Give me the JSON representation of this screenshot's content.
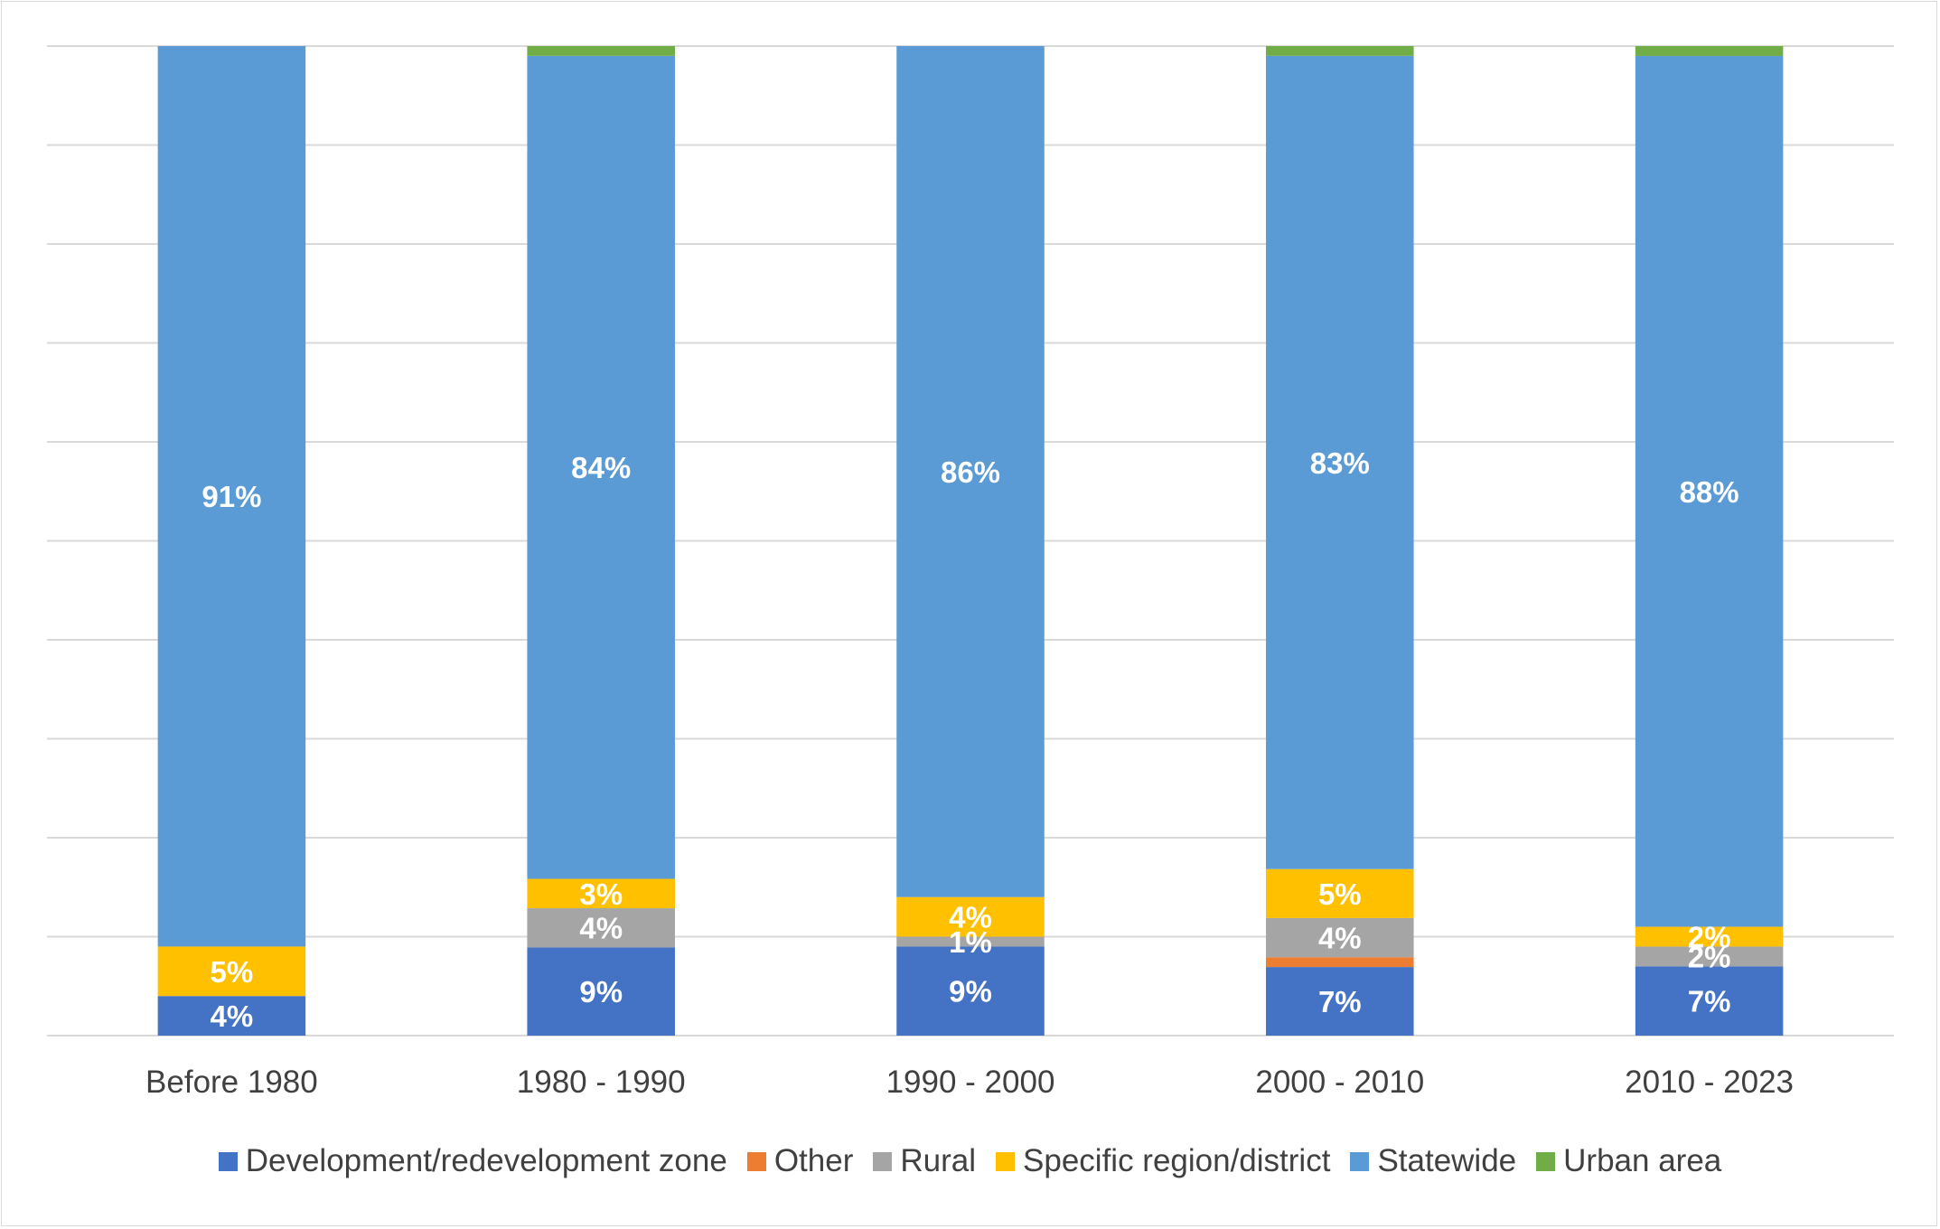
{
  "chart_data": {
    "type": "bar",
    "stacked": true,
    "normalized": true,
    "title": "",
    "xlabel": "",
    "ylabel": "",
    "ylim": [
      0,
      100
    ],
    "grid": true,
    "legend_position": "bottom",
    "categories": [
      "Before 1980",
      "1980 - 1990",
      "1990 - 2000",
      "2000 - 2010",
      "2010 - 2023"
    ],
    "series": [
      {
        "name": "Development/redevelopment zone",
        "color": "#4472C4",
        "values": [
          4,
          9,
          9,
          7,
          7
        ],
        "labels": [
          "4%",
          "9%",
          "9%",
          "7%",
          "7%"
        ]
      },
      {
        "name": "Other",
        "color": "#ED7D31",
        "values": [
          0,
          0,
          0,
          1,
          0
        ],
        "labels": [
          "",
          "",
          "",
          "",
          ""
        ]
      },
      {
        "name": "Rural",
        "color": "#A5A5A5",
        "values": [
          0,
          4,
          1,
          4,
          2
        ],
        "labels": [
          "",
          "4%",
          "1%",
          "4%",
          "2%"
        ]
      },
      {
        "name": "Specific region/district",
        "color": "#FFC000",
        "values": [
          5,
          3,
          4,
          5,
          2
        ],
        "labels": [
          "5%",
          "3%",
          "4%",
          "5%",
          "2%"
        ]
      },
      {
        "name": "Statewide",
        "color": "#5B9BD5",
        "values": [
          91,
          84,
          86,
          83,
          88
        ],
        "labels": [
          "91%",
          "84%",
          "86%",
          "83%",
          "88%"
        ]
      },
      {
        "name": "Urban area",
        "color": "#70AD47",
        "values": [
          0,
          1,
          0,
          1,
          1
        ],
        "labels": [
          "",
          "",
          "",
          "",
          ""
        ]
      }
    ]
  }
}
